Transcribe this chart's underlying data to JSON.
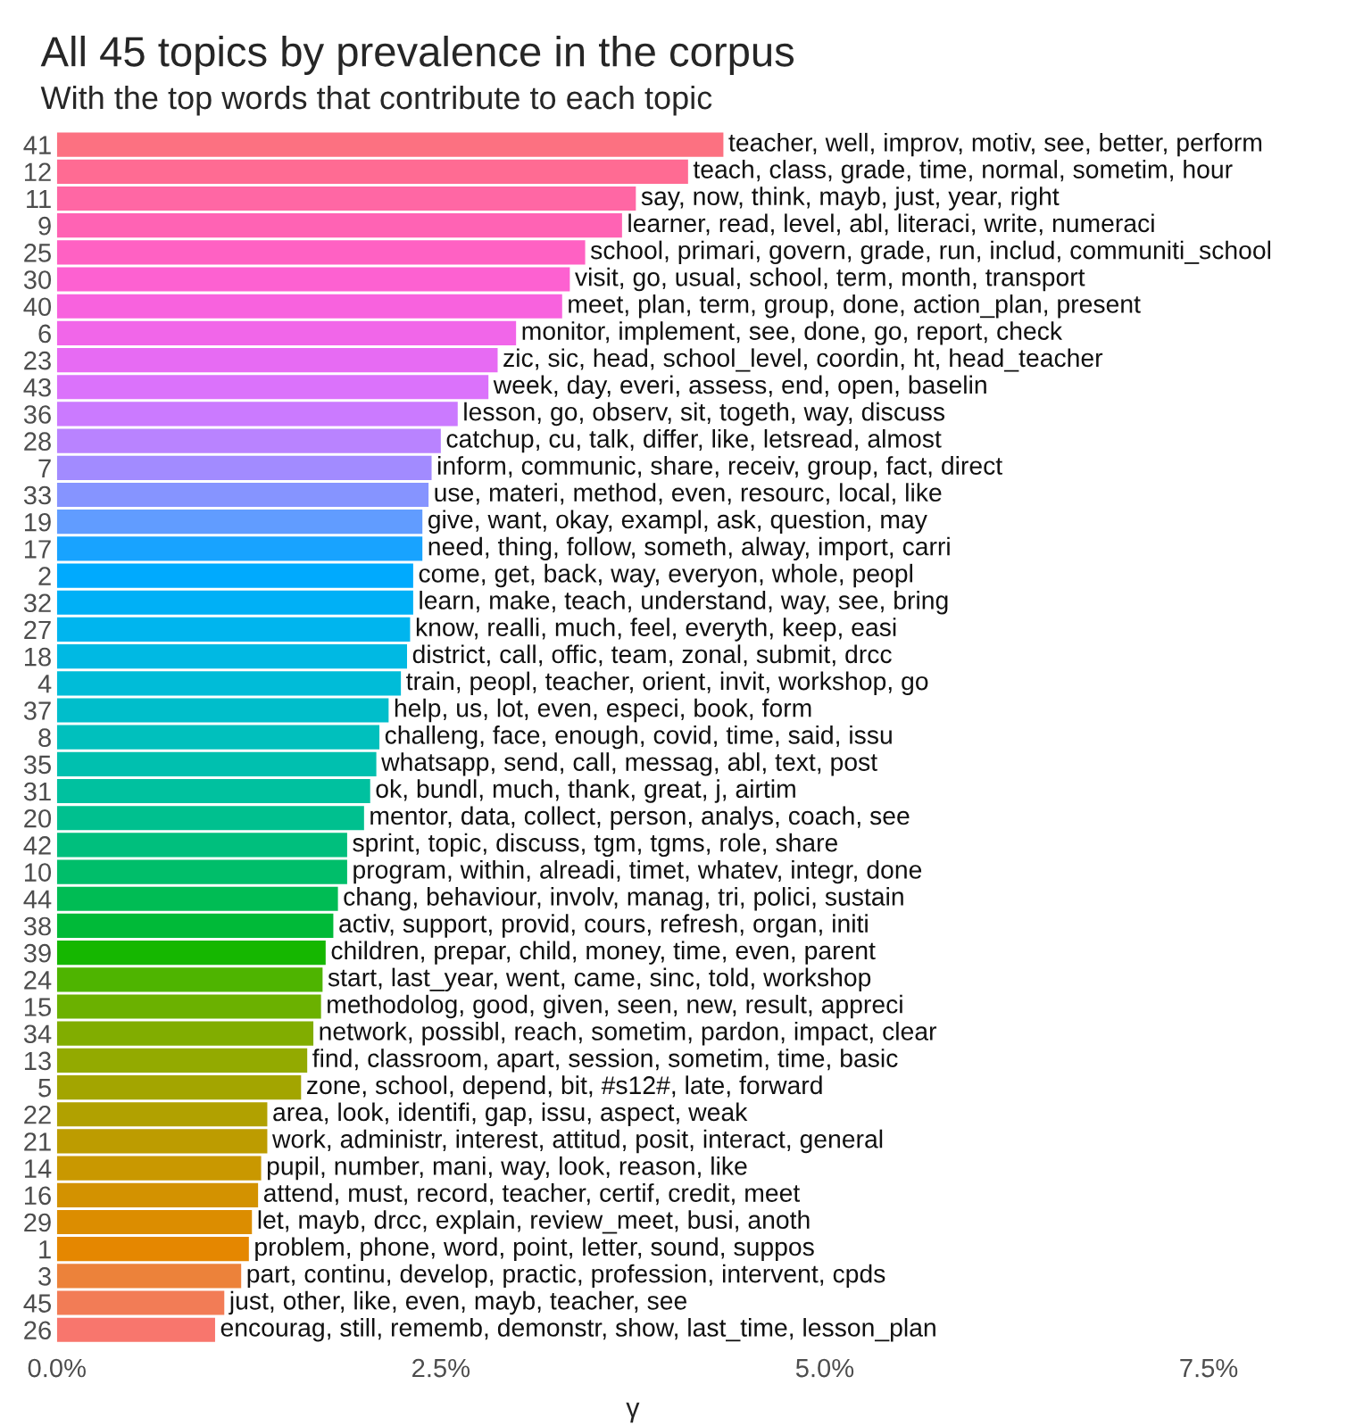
{
  "chart_data": {
    "type": "bar",
    "orientation": "horizontal",
    "title": "All 45 topics by prevalence in the corpus",
    "subtitle": "With the top words that contribute to each topic",
    "xlabel": "γ",
    "categories": [
      "41",
      "12",
      "11",
      "9",
      "25",
      "30",
      "40",
      "6",
      "23",
      "43",
      "36",
      "28",
      "7",
      "33",
      "19",
      "17",
      "2",
      "32",
      "27",
      "18",
      "4",
      "37",
      "8",
      "35",
      "31",
      "20",
      "42",
      "10",
      "44",
      "38",
      "39",
      "24",
      "15",
      "34",
      "13",
      "5",
      "22",
      "21",
      "14",
      "16",
      "29",
      "1",
      "3",
      "45",
      "26"
    ],
    "values": [
      4.34,
      4.11,
      3.77,
      3.68,
      3.44,
      3.34,
      3.29,
      2.99,
      2.87,
      2.81,
      2.61,
      2.5,
      2.44,
      2.42,
      2.38,
      2.38,
      2.32,
      2.32,
      2.3,
      2.28,
      2.24,
      2.16,
      2.1,
      2.08,
      2.04,
      2.0,
      1.89,
      1.89,
      1.83,
      1.8,
      1.75,
      1.73,
      1.72,
      1.67,
      1.63,
      1.59,
      1.37,
      1.37,
      1.33,
      1.31,
      1.27,
      1.25,
      1.2,
      1.09,
      1.03
    ],
    "colors": [
      "#fc7181",
      "#ff6b93",
      "#ff67a4",
      "#ff63b4",
      "#ff61c3",
      "#fd61d1",
      "#f862de",
      "#f166e9",
      "#e76bf3",
      "#db72fb",
      "#cb7aff",
      "#b983ff",
      "#a28bff",
      "#8694ff",
      "#619cff",
      "#18a3ff",
      "#00aafe",
      "#00b0f6",
      "#00b5ee",
      "#00b9e3",
      "#00bcd8",
      "#00becb",
      "#00c0bd",
      "#00c0af",
      "#00c19f",
      "#00c08f",
      "#00bf7d",
      "#00be6a",
      "#00bc54",
      "#00ba38",
      "#15b700",
      "#4eb400",
      "#6bb100",
      "#81ad00",
      "#93aa00",
      "#a3a500",
      "#b1a100",
      "#bd9c00",
      "#c99800",
      "#d39200",
      "#dc8d00",
      "#e58700",
      "#ec823a",
      "#f27c56",
      "#f8766d"
    ],
    "xlim": [
      0,
      7.5
    ],
    "xticks": [
      {
        "value": 0,
        "label": "0.0%"
      },
      {
        "value": 2.5,
        "label": "2.5%"
      },
      {
        "value": 5,
        "label": "5.0%"
      },
      {
        "value": 7.5,
        "label": "7.5%"
      }
    ],
    "annotations": [
      {
        "text": "teacher, well, improv, motiv, see, better, perform",
        "x": 4.34,
        "y": "41"
      },
      {
        "text": "teach, class, grade, time, normal, sometim, hour",
        "x": 4.11,
        "y": "12"
      },
      {
        "text": "say, now, think, mayb, just, year, right",
        "x": 3.77,
        "y": "11"
      },
      {
        "text": "learner, read, level, abl, literaci, write, numeraci",
        "x": 3.68,
        "y": "9"
      },
      {
        "text": "school, primari, govern, grade, run, includ, communiti_school",
        "x": 3.44,
        "y": "25"
      },
      {
        "text": "visit, go, usual, school, term, month, transport",
        "x": 3.34,
        "y": "30"
      },
      {
        "text": "meet, plan, term, group, done, action_plan, present",
        "x": 3.29,
        "y": "40"
      },
      {
        "text": "monitor, implement, see, done, go, report, check",
        "x": 2.99,
        "y": "6"
      },
      {
        "text": "zic, sic, head, school_level, coordin, ht, head_teacher",
        "x": 2.87,
        "y": "23"
      },
      {
        "text": "week, day, everi, assess, end, open, baselin",
        "x": 2.81,
        "y": "43"
      },
      {
        "text": "lesson, go, observ, sit, togeth, way, discuss",
        "x": 2.61,
        "y": "36"
      },
      {
        "text": "catchup, cu, talk, differ, like, letsread, almost",
        "x": 2.5,
        "y": "28"
      },
      {
        "text": "inform, communic, share, receiv, group, fact, direct",
        "x": 2.44,
        "y": "7"
      },
      {
        "text": "use, materi, method, even, resourc, local, like",
        "x": 2.42,
        "y": "33"
      },
      {
        "text": "give, want, okay, exampl, ask, question, may",
        "x": 2.38,
        "y": "19"
      },
      {
        "text": "need, thing, follow, someth, alway, import, carri",
        "x": 2.38,
        "y": "17"
      },
      {
        "text": "come, get, back, way, everyon, whole, peopl",
        "x": 2.32,
        "y": "2"
      },
      {
        "text": "learn, make, teach, understand, way, see, bring",
        "x": 2.32,
        "y": "32"
      },
      {
        "text": "know, realli, much, feel, everyth, keep, easi",
        "x": 2.3,
        "y": "27"
      },
      {
        "text": "district, call, offic, team, zonal, submit, drcc",
        "x": 2.28,
        "y": "18"
      },
      {
        "text": "train, peopl, teacher, orient, invit, workshop, go",
        "x": 2.24,
        "y": "4"
      },
      {
        "text": "help, us, lot, even, especi, book, form",
        "x": 2.16,
        "y": "37"
      },
      {
        "text": "challeng, face, enough, covid, time, said, issu",
        "x": 2.1,
        "y": "8"
      },
      {
        "text": "whatsapp, send, call, messag, abl, text, post",
        "x": 2.08,
        "y": "35"
      },
      {
        "text": "ok, bundl, much, thank, great, j, airtim",
        "x": 2.04,
        "y": "31"
      },
      {
        "text": "mentor, data, collect, person, analys, coach, see",
        "x": 2.0,
        "y": "20"
      },
      {
        "text": "sprint, topic, discuss, tgm, tgms, role, share",
        "x": 1.89,
        "y": "42"
      },
      {
        "text": "program, within, alreadi, timet, whatev, integr, done",
        "x": 1.89,
        "y": "10"
      },
      {
        "text": "chang, behaviour, involv, manag, tri, polici, sustain",
        "x": 1.83,
        "y": "44"
      },
      {
        "text": "activ, support, provid, cours, refresh, organ, initi",
        "x": 1.8,
        "y": "38"
      },
      {
        "text": "children, prepar, child, money, time, even, parent",
        "x": 1.75,
        "y": "39"
      },
      {
        "text": "start, last_year, went, came, sinc, told, workshop",
        "x": 1.73,
        "y": "24"
      },
      {
        "text": "methodolog, good, given, seen, new, result, appreci",
        "x": 1.72,
        "y": "15"
      },
      {
        "text": "network, possibl, reach, sometim, pardon, impact, clear",
        "x": 1.67,
        "y": "34"
      },
      {
        "text": "find, classroom, apart, session, sometim, time, basic",
        "x": 1.63,
        "y": "13"
      },
      {
        "text": "zone, school, depend, bit, #s12#, late, forward",
        "x": 1.59,
        "y": "5"
      },
      {
        "text": "area, look, identifi, gap, issu, aspect, weak",
        "x": 1.37,
        "y": "22"
      },
      {
        "text": "work, administr, interest, attitud, posit, interact, general",
        "x": 1.37,
        "y": "21"
      },
      {
        "text": "pupil, number, mani, way, look, reason, like",
        "x": 1.33,
        "y": "14"
      },
      {
        "text": "attend, must, record, teacher, certif, credit, meet",
        "x": 1.31,
        "y": "16"
      },
      {
        "text": "let, mayb, drcc, explain, review_meet, busi, anoth",
        "x": 1.27,
        "y": "29"
      },
      {
        "text": "problem, phone, word, point, letter, sound, suppos",
        "x": 1.25,
        "y": "1"
      },
      {
        "text": "part, continu, develop, practic, profession, intervent, cpds",
        "x": 1.2,
        "y": "3"
      },
      {
        "text": "just, other, like, even, mayb, teacher, see",
        "x": 1.09,
        "y": "45"
      },
      {
        "text": "encourag, still, rememb, demonstr, show, last_time, lesson_plan",
        "x": 1.03,
        "y": "26"
      }
    ]
  }
}
